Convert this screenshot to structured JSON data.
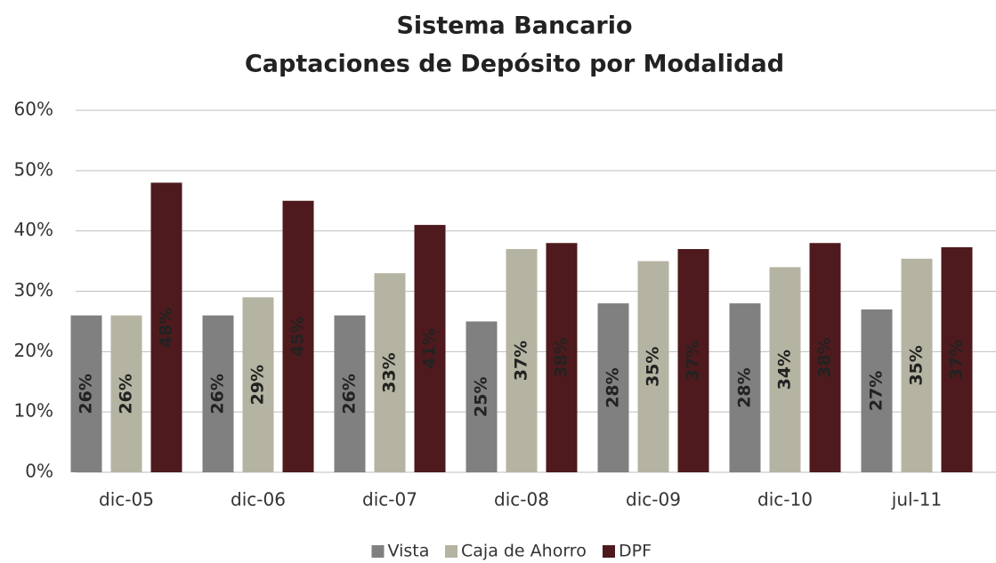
{
  "chart_data": {
    "type": "bar",
    "title": [
      "Sistema Bancario",
      "Captaciones de Depósito por Modalidad"
    ],
    "categories": [
      "dic-05",
      "dic-06",
      "dic-07",
      "dic-08",
      "dic-09",
      "dic-10",
      "jul-11"
    ],
    "series": [
      {
        "name": "Vista",
        "color": "#808080",
        "label_color": "#ffffff",
        "values": [
          26,
          26,
          26,
          25,
          28,
          28,
          27
        ],
        "value_labels": [
          "26%",
          "26%",
          "26%",
          "25%",
          "28%",
          "28%",
          "27%"
        ]
      },
      {
        "name": "Caja de Ahorro",
        "color": "#b5b4a2",
        "label_color": "#1a1a1a",
        "values": [
          26,
          29,
          33,
          37,
          35,
          34,
          35.4
        ],
        "value_labels": [
          "26%",
          "29%",
          "33%",
          "37%",
          "35%",
          "34%",
          "35%"
        ]
      },
      {
        "name": "DPF",
        "color": "#4e1a1d",
        "label_color": "#ffffff",
        "values": [
          48,
          45,
          41,
          38,
          37,
          38,
          37.3
        ],
        "value_labels": [
          "48%",
          "45%",
          "41%",
          "38%",
          "37%",
          "38%",
          "37%"
        ]
      }
    ],
    "ylim": [
      0,
      60
    ],
    "yticks": [
      {
        "value": 0,
        "label": "0%"
      },
      {
        "value": 10,
        "label": "10%"
      },
      {
        "value": 20,
        "label": "20%"
      },
      {
        "value": 30,
        "label": "30%"
      },
      {
        "value": 40,
        "label": "40%"
      },
      {
        "value": 50,
        "label": "50%"
      },
      {
        "value": 60,
        "label": "60%"
      }
    ],
    "grid": true,
    "legend": "bottom"
  }
}
